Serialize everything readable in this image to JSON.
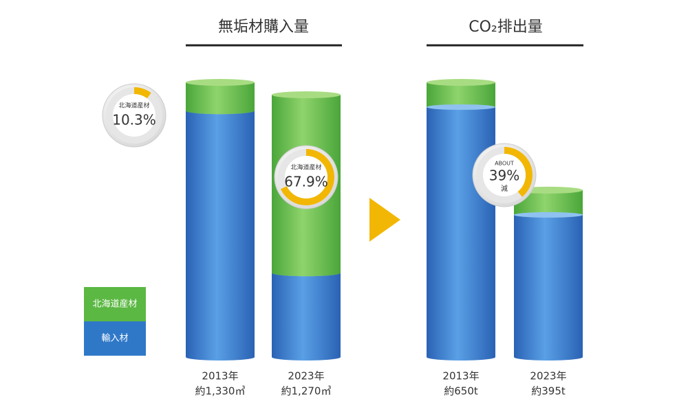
{
  "chart_data": [
    {
      "type": "stacked-cylinder",
      "title": "無垢材購入量",
      "categories": [
        "2013年",
        "2023年"
      ],
      "total_labels": [
        "約1,330㎥",
        "約1,270㎥"
      ],
      "series": [
        {
          "name": "北海道産材",
          "color": "#5bb843",
          "values": [
            137,
            862
          ]
        },
        {
          "name": "輸入材",
          "color": "#2f78c8",
          "values": [
            1193,
            408
          ]
        }
      ],
      "share_caption": "北海道産材",
      "shares": [
        10.3,
        67.9
      ],
      "share_labels": [
        "10.3%",
        "67.9%"
      ],
      "donut_color": "#f2b705"
    },
    {
      "type": "cylinder",
      "title": "CO₂排出量",
      "categories": [
        "2013年",
        "2023年"
      ],
      "values": [
        650,
        395
      ],
      "value_labels": [
        "約650t",
        "約395t"
      ],
      "color": "#2f78c8",
      "change": {
        "prefix": "ABOUT",
        "value": 39,
        "label": "39%",
        "suffix": "減"
      },
      "donut_color": "#f2b705"
    }
  ]
}
